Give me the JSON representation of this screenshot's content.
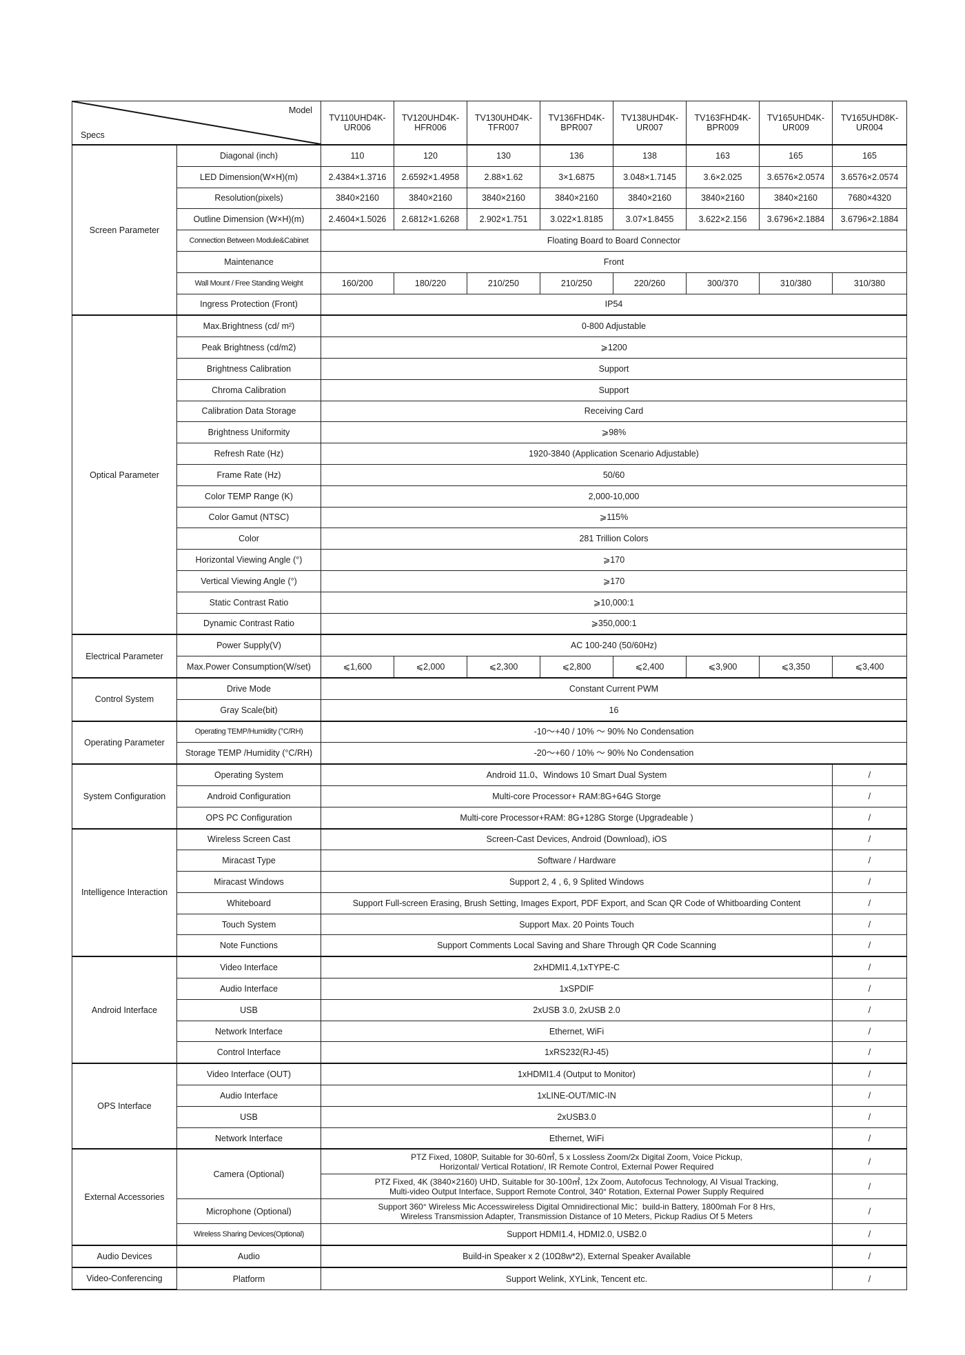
{
  "header": {
    "model_label": "Model",
    "specs_label": "Specs",
    "models": [
      "TV110UHD4K-UR006",
      "TV120UHD4K-HFR006",
      "TV130UHD4K-TFR007",
      "TV136FHD4K-BPR007",
      "TV138UHD4K-UR007",
      "TV163FHD4K-BPR009",
      "TV165UHD4K-UR009",
      "TV165UHD8K-UR004"
    ]
  },
  "sections": [
    {
      "name": "Screen Parameter",
      "rows": [
        {
          "label": "Diagonal (inch)",
          "values": [
            "110",
            "120",
            "130",
            "136",
            "138",
            "163",
            "165",
            "165"
          ]
        },
        {
          "label": "LED Dimension(W×H)(m)",
          "values": [
            "2.4384×1.3716",
            "2.6592×1.4958",
            "2.88×1.62",
            "3×1.6875",
            "3.048×1.7145",
            "3.6×2.025",
            "3.6576×2.0574",
            "3.6576×2.0574"
          ]
        },
        {
          "label": "Resolution(pixels)",
          "values": [
            "3840×2160",
            "3840×2160",
            "3840×2160",
            "3840×2160",
            "3840×2160",
            "3840×2160",
            "3840×2160",
            "7680×4320"
          ]
        },
        {
          "label": "Outline Dimension (W×H)(m)",
          "values": [
            "2.4604×1.5026",
            "2.6812×1.6268",
            "2.902×1.751",
            "3.022×1.8185",
            "3.07×1.8455",
            "3.622×2.156",
            "3.6796×2.1884",
            "3.6796×2.1884"
          ]
        },
        {
          "label": "Connection Between Module&Cabinet",
          "value": "Floating Board to Board Connector"
        },
        {
          "label": "Maintenance",
          "value": "Front"
        },
        {
          "label": "Wall Mount / Free Standing Weight",
          "values": [
            "160/200",
            "180/220",
            "210/250",
            "210/250",
            "220/260",
            "300/370",
            "310/380",
            "310/380"
          ]
        },
        {
          "label": "Ingress Protection (Front)",
          "value": "IP54"
        }
      ]
    },
    {
      "name": "Optical Parameter",
      "rows": [
        {
          "label": "Max.Brightness (cd/ m²)",
          "value": "0-800 Adjustable"
        },
        {
          "label": "Peak Brightness (cd/m2)",
          "value": "⩾1200"
        },
        {
          "label": "Brightness Calibration",
          "value": "Support"
        },
        {
          "label": "Chroma Calibration",
          "value": "Support"
        },
        {
          "label": "Calibration Data Storage",
          "value": "Receiving Card"
        },
        {
          "label": "Brightness Uniformity",
          "value": "⩾98%"
        },
        {
          "label": "Refresh Rate (Hz)",
          "value": "1920-3840 (Application Scenario Adjustable)"
        },
        {
          "label": "Frame Rate (Hz)",
          "value": "50/60"
        },
        {
          "label": "Color TEMP Range (K)",
          "value": "2,000-10,000"
        },
        {
          "label": "Color Gamut (NTSC)",
          "value": "⩾115%"
        },
        {
          "label": "Color",
          "value": "281 Trillion Colors"
        },
        {
          "label": "Horizontal Viewing Angle (°)",
          "value": "⩾170"
        },
        {
          "label": "Vertical Viewing Angle (°)",
          "value": "⩾170"
        },
        {
          "label": "Static Contrast Ratio",
          "value": "⩾10,000:1"
        },
        {
          "label": "Dynamic Contrast Ratio",
          "value": "⩾350,000:1"
        }
      ]
    },
    {
      "name": "Electrical Parameter",
      "rows": [
        {
          "label": "Power Supply(V)",
          "value": "AC 100-240 (50/60Hz)"
        },
        {
          "label": "Max.Power Consumption(W/set)",
          "values": [
            "⩽1,600",
            "⩽2,000",
            "⩽2,300",
            "⩽2,800",
            "⩽2,400",
            "⩽3,900",
            "⩽3,350",
            "⩽3,400"
          ]
        }
      ]
    },
    {
      "name": "Control System",
      "rows": [
        {
          "label": "Drive Mode",
          "value": "Constant Current PWM"
        },
        {
          "label": "Gray Scale(bit)",
          "value": "16"
        }
      ]
    },
    {
      "name": "Operating Parameter",
      "rows": [
        {
          "label": "Operating TEMP/Humidity (°C/RH)",
          "value": "-10～+40 / 10% ～ 90% No Condensation"
        },
        {
          "label": "Storage TEMP /Humidity (°C/RH)",
          "value": "-20～+60 / 10% ～ 90% No Condensation"
        }
      ]
    },
    {
      "name": "System Configuration",
      "rows": [
        {
          "label": "Operating System",
          "value": "Android 11.0、Windows 10 Smart Dual System",
          "na": "/"
        },
        {
          "label": "Android  Configuration",
          "value": "Multi-core Processor+ RAM:8G+64G Storge",
          "na": "/"
        },
        {
          "label": "OPS PC Configuration",
          "value": "Multi-core Processor+RAM: 8G+128G Storge (Upgradeable )",
          "na": "/"
        }
      ]
    },
    {
      "name": "Intelligence Interaction",
      "rows": [
        {
          "label": "Wireless Screen Cast",
          "value": "Screen-Cast Devices, Android (Download), iOS",
          "na": "/"
        },
        {
          "label": "Miracast Type",
          "value": "Software / Hardware",
          "na": "/"
        },
        {
          "label": "Miracast Windows",
          "value": "Support 2, 4 , 6, 9 Splited Windows",
          "na": "/"
        },
        {
          "label": "Whiteboard",
          "value": "Support Full-screen Erasing, Brush Setting, Images Export, PDF Export, and Scan QR Code of Whitboarding Content",
          "na": "/"
        },
        {
          "label": "Touch System",
          "value": "Support Max. 20 Points Touch",
          "na": "/"
        },
        {
          "label": "Note Functions",
          "value": "Support Comments Local Saving and Share Through QR Code Scanning",
          "na": "/"
        }
      ]
    },
    {
      "name": "Android Interface",
      "rows": [
        {
          "label": "Video Interface",
          "value": "2xHDMI1.4,1xTYPE-C",
          "na": "/"
        },
        {
          "label": "Audio Interface",
          "value": "1xSPDIF",
          "na": "/"
        },
        {
          "label": "USB",
          "value": "2xUSB 3.0, 2xUSB 2.0",
          "na": "/"
        },
        {
          "label": "Network Interface",
          "value": "Ethernet, WiFi",
          "na": "/"
        },
        {
          "label": "Control Interface",
          "value": "1xRS232(RJ-45)",
          "na": "/"
        }
      ]
    },
    {
      "name": "OPS Interface",
      "rows": [
        {
          "label": "Video Interface  (OUT)",
          "value": "1xHDMI1.4 (Output to Monitor)",
          "na": "/"
        },
        {
          "label": "Audio Interface",
          "value": "1xLINE-OUT/MIC-IN",
          "na": "/"
        },
        {
          "label": "USB",
          "value": "2xUSB3.0",
          "na": "/"
        },
        {
          "label": "Network Interface",
          "value": "Ethernet, WiFi",
          "na": "/"
        }
      ]
    },
    {
      "name": "External Accessories",
      "rows": [
        {
          "label": "Camera (Optional)",
          "options": [
            {
              "lines": [
                "PTZ Fixed, 1080P, Suitable for 30-60㎡, 5 x Lossless Zoom/2x Digital Zoom, Voice Pickup,",
                "Horizontal/ Vertical Rotation/, IR Remote Control, External Power Required"
              ],
              "na": "/"
            },
            {
              "lines": [
                "PTZ Fixed, 4K (3840×2160) UHD, Suitable for 30-100㎡, 12x Zoom, Autofocus Technology, AI Visual Tracking,",
                "Multi-video Output Interface, Support Remote Control, 340° Rotation, External Power Supply Required"
              ],
              "na": "/"
            }
          ]
        },
        {
          "label": "Microphone (Optional)",
          "lines": [
            "Support 360°  Wireless Mic Accesswireless Digital Omnidirectional Mic：build-in Battery, 1800mah For 8 Hrs,",
            "Wireless Transmission Adapter, Transmission Distance of 10 Meters, Pickup Radius Of 5 Meters"
          ],
          "na": "/"
        },
        {
          "label": "Wireless Sharing Devices(Optional)",
          "value": "Support HDMI1.4, HDMI2.0, USB2.0",
          "na": "/"
        }
      ]
    },
    {
      "name": "Audio Devices",
      "rows": [
        {
          "label": "Audio",
          "value": "Build-in Speaker x 2 (10Ω8w*2), External Speaker Available",
          "na": "/"
        }
      ]
    },
    {
      "name": "Video-Conferencing",
      "rows": [
        {
          "label": "Platform",
          "value": "Support  Welink, XYLink, Tencent etc.",
          "na": "/"
        }
      ]
    }
  ]
}
